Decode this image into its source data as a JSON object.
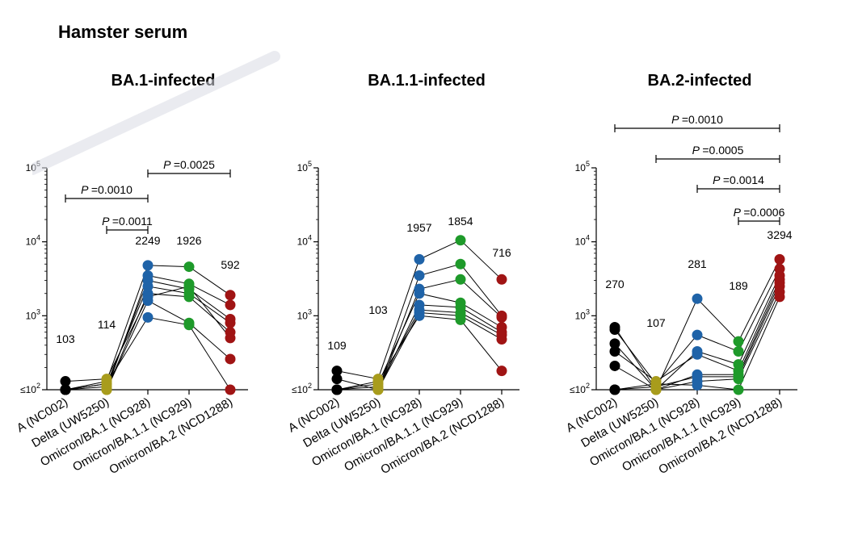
{
  "figure_title": "Hamster serum",
  "colors": {
    "A (NC002)": "#000000",
    "Delta (UW5250)": "#a89c1c",
    "Omicron/BA.1 (NC928)": "#1f63a8",
    "Omicron/BA.1.1 (NC929)": "#1e9a2a",
    "Omicron/BA.2 (NCD1288)": "#a01414"
  },
  "chart_data": [
    {
      "type": "scatter",
      "title": "BA.1-infected",
      "scale": "log10",
      "ylim": [
        100,
        100000
      ],
      "yticks": [
        {
          "value": 100,
          "prefix": "≤10",
          "exp": "2"
        },
        {
          "value": 1000,
          "prefix": "10",
          "exp": "3"
        },
        {
          "value": 10000,
          "prefix": "10",
          "exp": "4"
        },
        {
          "value": 100000,
          "prefix": "10",
          "exp": "5"
        }
      ],
      "categories": [
        "A (NC002)",
        "Delta (UW5250)",
        "Omicron/BA.1 (NC928)",
        "Omicron/BA.1.1 (NC929)",
        "Omicron/BA.2 (NCD1288)"
      ],
      "gmt_labels": [
        "103",
        "114",
        "2249",
        "1926",
        "592"
      ],
      "subjects": [
        [
          100,
          130,
          4800,
          4600,
          1900
        ],
        [
          100,
          100,
          3500,
          2700,
          1400
        ],
        [
          100,
          110,
          3000,
          2300,
          900
        ],
        [
          100,
          120,
          2500,
          2000,
          800
        ],
        [
          100,
          100,
          2000,
          1800,
          600
        ],
        [
          130,
          140,
          1800,
          2500,
          500
        ],
        [
          100,
          100,
          1600,
          800,
          260
        ],
        [
          100,
          120,
          950,
          750,
          100
        ]
      ],
      "comparisons": [
        {
          "from": 0,
          "to": 2,
          "label": "P =0.0010"
        },
        {
          "from": 1,
          "to": 2,
          "label": "P =0.0011"
        },
        {
          "from": 2,
          "to": 4,
          "label": "P =0.0025"
        }
      ]
    },
    {
      "type": "scatter",
      "title": "BA.1.1-infected",
      "scale": "log10",
      "ylim": [
        100,
        100000
      ],
      "yticks": [
        {
          "value": 100,
          "prefix": "≤10",
          "exp": "2"
        },
        {
          "value": 1000,
          "prefix": "10",
          "exp": "3"
        },
        {
          "value": 10000,
          "prefix": "10",
          "exp": "4"
        },
        {
          "value": 100000,
          "prefix": "10",
          "exp": "5"
        }
      ],
      "categories": [
        "A (NC002)",
        "Delta (UW5250)",
        "Omicron/BA.1 (NC928)",
        "Omicron/BA.1.1 (NC929)",
        "Omicron/BA.2 (NCD1288)"
      ],
      "gmt_labels": [
        "109",
        "103",
        "1957",
        "1854",
        "716"
      ],
      "subjects": [
        [
          180,
          140,
          5800,
          10500,
          3100
        ],
        [
          140,
          100,
          3500,
          5000,
          1000
        ],
        [
          100,
          100,
          2300,
          3100,
          950
        ],
        [
          100,
          120,
          2000,
          1500,
          700
        ],
        [
          100,
          100,
          1400,
          1300,
          600
        ],
        [
          100,
          110,
          1200,
          1100,
          550
        ],
        [
          100,
          100,
          1100,
          1000,
          480
        ],
        [
          100,
          130,
          1000,
          880,
          180
        ]
      ],
      "comparisons": []
    },
    {
      "type": "scatter",
      "title": "BA.2-infected",
      "scale": "log10",
      "ylim": [
        100,
        100000
      ],
      "yticks": [
        {
          "value": 100,
          "prefix": "≤10",
          "exp": "2"
        },
        {
          "value": 1000,
          "prefix": "10",
          "exp": "3"
        },
        {
          "value": 10000,
          "prefix": "10",
          "exp": "4"
        },
        {
          "value": 100000,
          "prefix": "10",
          "exp": "5"
        }
      ],
      "categories": [
        "A (NC002)",
        "Delta (UW5250)",
        "Omicron/BA.1 (NC928)",
        "Omicron/BA.1.1 (NC929)",
        "Omicron/BA.2 (NCD1288)"
      ],
      "gmt_labels": [
        "270",
        "107",
        "281",
        "189",
        "3294"
      ],
      "subjects": [
        [
          700,
          100,
          1700,
          450,
          5800
        ],
        [
          650,
          120,
          550,
          330,
          4300
        ],
        [
          420,
          100,
          330,
          220,
          3500
        ],
        [
          330,
          130,
          300,
          180,
          3100
        ],
        [
          210,
          100,
          160,
          160,
          2800
        ],
        [
          100,
          110,
          150,
          150,
          2500
        ],
        [
          100,
          100,
          130,
          140,
          2100
        ],
        [
          100,
          120,
          115,
          100,
          1800
        ]
      ],
      "comparisons": [
        {
          "from": 0,
          "to": 4,
          "label": "P =0.0010"
        },
        {
          "from": 1,
          "to": 4,
          "label": "P =0.0005"
        },
        {
          "from": 2,
          "to": 4,
          "label": "P =0.0014"
        },
        {
          "from": 3,
          "to": 4,
          "label": "P =0.0006"
        }
      ]
    }
  ]
}
